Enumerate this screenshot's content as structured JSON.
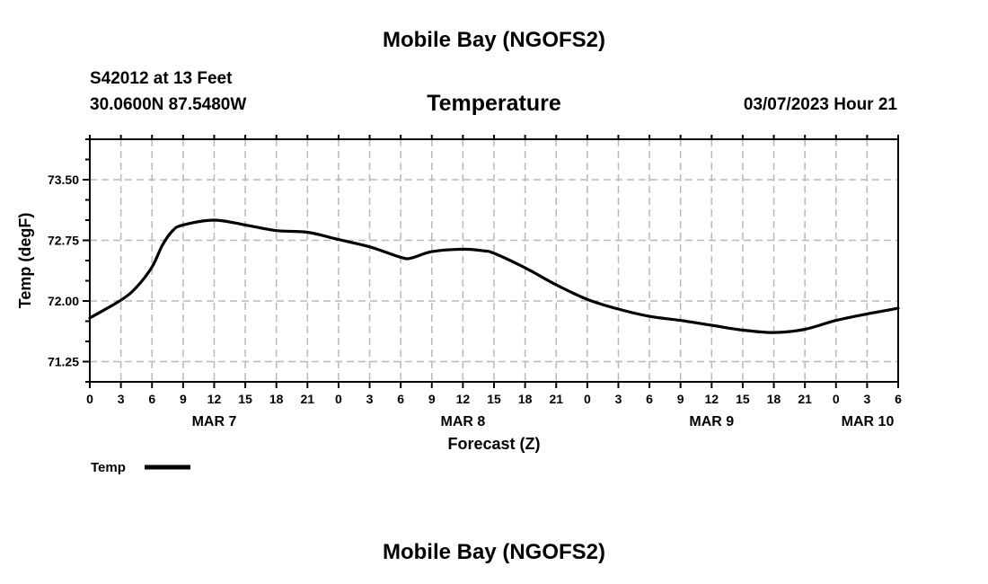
{
  "header": {
    "title": "Mobile Bay (NGOFS2)",
    "station": "S42012 at 13 Feet",
    "coords": "30.0600N  87.5480W",
    "subtitle": "Temperature",
    "datetime": "03/07/2023 Hour 21",
    "footer_title": "Mobile Bay (NGOFS2)"
  },
  "chart_data": {
    "type": "line",
    "title": "Temperature",
    "xlabel": "Forecast (Z)",
    "ylabel": "Temp (degF)",
    "xlim": [
      0,
      78
    ],
    "ylim": [
      71.0,
      74.0
    ],
    "grid": true,
    "x_tick_labels": [
      "0",
      "3",
      "6",
      "9",
      "12",
      "15",
      "18",
      "21",
      "0",
      "3",
      "6",
      "9",
      "12",
      "15",
      "18",
      "21",
      "0",
      "3",
      "6",
      "9",
      "12",
      "15",
      "18",
      "21",
      "0",
      "3",
      "6"
    ],
    "date_labels": [
      {
        "label": "MAR 7",
        "hour": 12
      },
      {
        "label": "MAR 8",
        "hour": 36
      },
      {
        "label": "MAR 9",
        "hour": 60
      },
      {
        "label": "MAR 10",
        "hour": 78
      }
    ],
    "y_ticks": [
      71.25,
      72.0,
      72.75,
      73.5
    ],
    "y_tick_labels": [
      "71.25",
      "72.00",
      "72.75",
      "73.50"
    ],
    "legend": {
      "label": "Temp",
      "placement": "bottom-left"
    },
    "series": [
      {
        "name": "Temp",
        "color": "#000000",
        "x": [
          0,
          3,
          4.5,
          6,
          7,
          8,
          9,
          12,
          15,
          18,
          21,
          24,
          27,
          30,
          31,
          33,
          36,
          38,
          39,
          42,
          45,
          48,
          51,
          54,
          57,
          60,
          63,
          66,
          69,
          72,
          75,
          78
        ],
        "y": [
          71.79,
          72.01,
          72.17,
          72.42,
          72.69,
          72.87,
          72.94,
          73.0,
          72.94,
          72.87,
          72.85,
          72.76,
          72.67,
          72.54,
          72.53,
          72.61,
          72.64,
          72.62,
          72.59,
          72.41,
          72.2,
          72.02,
          71.9,
          71.81,
          71.76,
          71.7,
          71.64,
          71.61,
          71.65,
          71.76,
          71.84,
          71.91
        ]
      }
    ]
  }
}
